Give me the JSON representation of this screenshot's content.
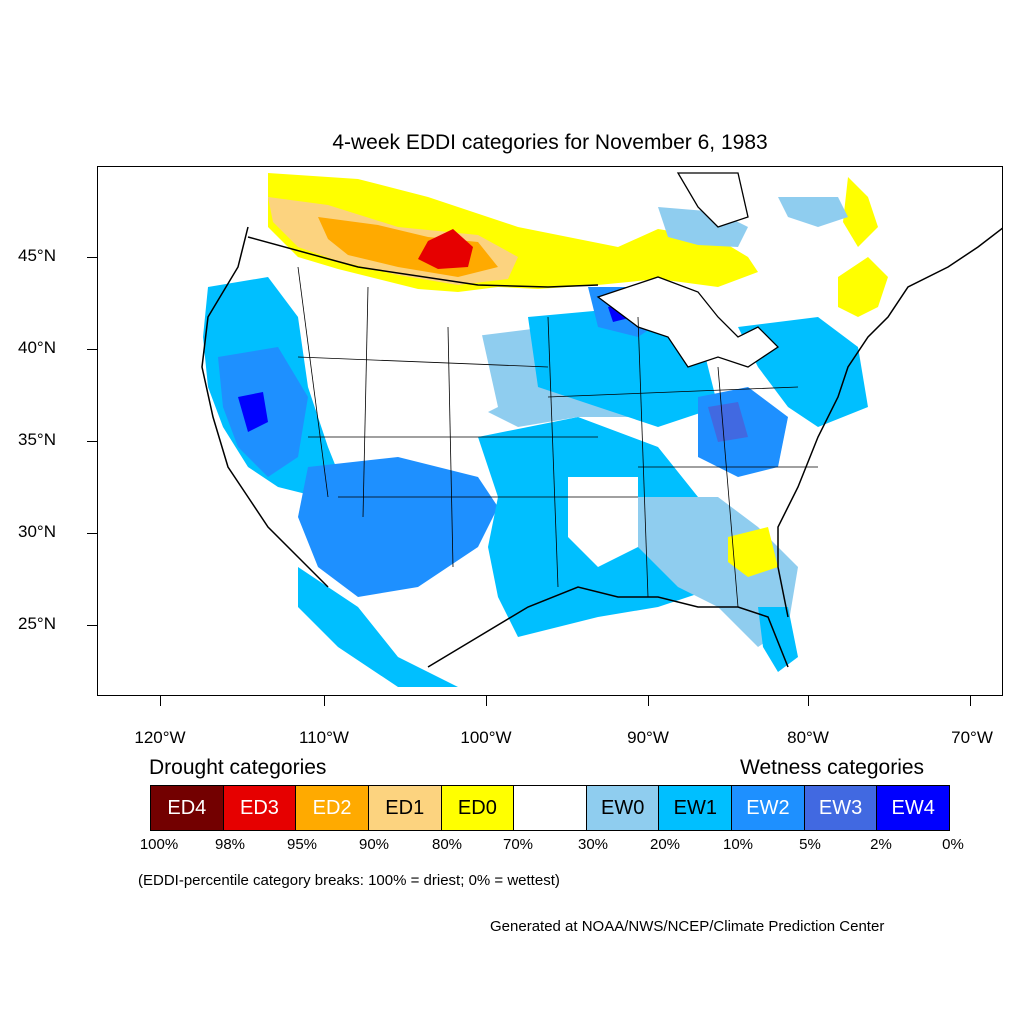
{
  "title": "4-week EDDI categories for November 6, 1983",
  "lat_labels": [
    "45°N",
    "40°N",
    "35°N",
    "30°N",
    "25°N"
  ],
  "lon_labels": [
    "120°W",
    "110°W",
    "100°W",
    "90°W",
    "80°W",
    "70°W"
  ],
  "legend": {
    "drought_heading": "Drought categories",
    "wetness_heading": "Wetness categories",
    "categories": [
      {
        "label": "ED4",
        "color": "#730000"
      },
      {
        "label": "ED3",
        "color": "#e60000"
      },
      {
        "label": "ED2",
        "color": "#ffaa00"
      },
      {
        "label": "ED1",
        "color": "#fcd37f"
      },
      {
        "label": "ED0",
        "color": "#ffff00"
      },
      {
        "label": "",
        "color": "#ffffff"
      },
      {
        "label": "EW0",
        "color": "#8fcdef"
      },
      {
        "label": "EW1",
        "color": "#00bfff"
      },
      {
        "label": "EW2",
        "color": "#1e90ff"
      },
      {
        "label": "EW3",
        "color": "#4169e1"
      },
      {
        "label": "EW4",
        "color": "#0000ff"
      }
    ],
    "percent_breaks": [
      "100%",
      "98%",
      "95%",
      "90%",
      "80%",
      "70%",
      "30%",
      "20%",
      "10%",
      "5%",
      "2%",
      "0%"
    ]
  },
  "note": "(EDDI-percentile category breaks: 100% = driest; 0% = wettest)",
  "credit": "Generated at NOAA/NWS/NCEP/Climate Prediction Center"
}
